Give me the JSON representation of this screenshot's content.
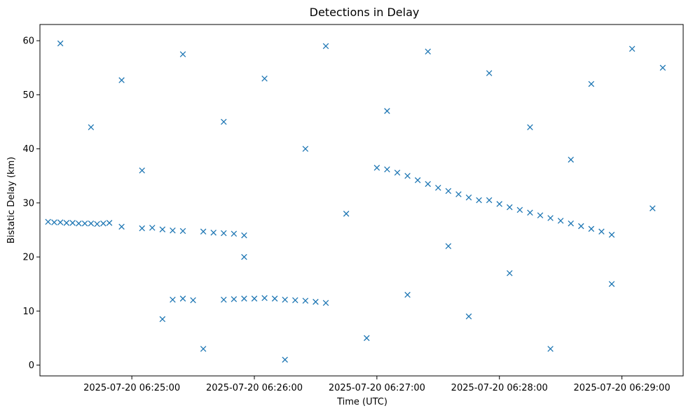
{
  "chart_data": {
    "type": "scatter",
    "title": "Detections in Delay",
    "xlabel": "Time (UTC)",
    "ylabel": "Bistatic Delay (km)",
    "marker": "x",
    "color": "#1f77b4",
    "grid": false,
    "x_axis": {
      "kind": "time",
      "range": [
        "2025-07-20 06:24:15",
        "2025-07-20 06:29:30"
      ],
      "ticks": [
        "2025-07-20 06:25:00",
        "2025-07-20 06:26:00",
        "2025-07-20 06:27:00",
        "2025-07-20 06:28:00",
        "2025-07-20 06:29:00"
      ]
    },
    "y_axis": {
      "range": [
        -2,
        63
      ],
      "ticks": [
        0,
        10,
        20,
        30,
        40,
        50,
        60
      ]
    },
    "series": [
      {
        "start": "2025-07-20 06:24:15",
        "points": [
          [
            "2025-07-20 06:24:19",
            26.5
          ],
          [
            "2025-07-20 06:24:22",
            26.4
          ],
          [
            "2025-07-20 06:24:25",
            26.4
          ],
          [
            "2025-07-20 06:24:28",
            26.3
          ],
          [
            "2025-07-20 06:24:31",
            26.3
          ],
          [
            "2025-07-20 06:24:34",
            26.2
          ],
          [
            "2025-07-20 06:24:37",
            26.2
          ],
          [
            "2025-07-20 06:24:40",
            26.2
          ],
          [
            "2025-07-20 06:24:43",
            26.1
          ],
          [
            "2025-07-20 06:24:46",
            26.2
          ],
          [
            "2025-07-20 06:24:49",
            26.3
          ],
          [
            "2025-07-20 06:24:55",
            25.6
          ],
          [
            "2025-07-20 06:25:05",
            25.3
          ],
          [
            "2025-07-20 06:25:10",
            25.4
          ],
          [
            "2025-07-20 06:25:15",
            25.1
          ],
          [
            "2025-07-20 06:25:20",
            24.9
          ],
          [
            "2025-07-20 06:25:25",
            24.8
          ],
          [
            "2025-07-20 06:25:35",
            24.7
          ],
          [
            "2025-07-20 06:25:40",
            24.5
          ],
          [
            "2025-07-20 06:25:45",
            24.4
          ],
          [
            "2025-07-20 06:25:50",
            24.3
          ],
          [
            "2025-07-20 06:25:55",
            24.0
          ],
          [
            "2025-07-20 06:25:20",
            12.1
          ],
          [
            "2025-07-20 06:25:25",
            12.3
          ],
          [
            "2025-07-20 06:25:30",
            12.0
          ],
          [
            "2025-07-20 06:25:45",
            12.1
          ],
          [
            "2025-07-20 06:25:50",
            12.2
          ],
          [
            "2025-07-20 06:25:55",
            12.3
          ],
          [
            "2025-07-20 06:26:00",
            12.3
          ],
          [
            "2025-07-20 06:26:05",
            12.4
          ],
          [
            "2025-07-20 06:26:10",
            12.3
          ],
          [
            "2025-07-20 06:26:15",
            12.1
          ],
          [
            "2025-07-20 06:26:20",
            12.0
          ],
          [
            "2025-07-20 06:26:25",
            11.9
          ],
          [
            "2025-07-20 06:26:30",
            11.7
          ],
          [
            "2025-07-20 06:26:35",
            11.5
          ],
          [
            "2025-07-20 06:27:00",
            36.5
          ],
          [
            "2025-07-20 06:27:05",
            36.2
          ],
          [
            "2025-07-20 06:27:10",
            35.6
          ],
          [
            "2025-07-20 06:27:15",
            35.0
          ],
          [
            "2025-07-20 06:27:20",
            34.2
          ],
          [
            "2025-07-20 06:27:25",
            33.5
          ],
          [
            "2025-07-20 06:27:30",
            32.8
          ],
          [
            "2025-07-20 06:27:35",
            32.2
          ],
          [
            "2025-07-20 06:27:40",
            31.6
          ],
          [
            "2025-07-20 06:27:45",
            31.0
          ],
          [
            "2025-07-20 06:27:50",
            30.5
          ],
          [
            "2025-07-20 06:27:55",
            30.5
          ],
          [
            "2025-07-20 06:28:00",
            29.8
          ],
          [
            "2025-07-20 06:28:05",
            29.2
          ],
          [
            "2025-07-20 06:28:10",
            28.7
          ],
          [
            "2025-07-20 06:28:15",
            28.2
          ],
          [
            "2025-07-20 06:28:20",
            27.7
          ],
          [
            "2025-07-20 06:28:25",
            27.2
          ],
          [
            "2025-07-20 06:28:30",
            26.7
          ],
          [
            "2025-07-20 06:28:35",
            26.2
          ],
          [
            "2025-07-20 06:28:40",
            25.7
          ],
          [
            "2025-07-20 06:28:45",
            25.2
          ],
          [
            "2025-07-20 06:28:50",
            24.7
          ],
          [
            "2025-07-20 06:28:55",
            24.1
          ],
          [
            "2025-07-20 06:24:25",
            59.5
          ],
          [
            "2025-07-20 06:24:40",
            44.0
          ],
          [
            "2025-07-20 06:24:55",
            52.7
          ],
          [
            "2025-07-20 06:25:05",
            36.0
          ],
          [
            "2025-07-20 06:25:15",
            8.5
          ],
          [
            "2025-07-20 06:25:25",
            57.5
          ],
          [
            "2025-07-20 06:25:35",
            3.0
          ],
          [
            "2025-07-20 06:25:45",
            45.0
          ],
          [
            "2025-07-20 06:25:55",
            20.0
          ],
          [
            "2025-07-20 06:26:05",
            53.0
          ],
          [
            "2025-07-20 06:26:15",
            1.0
          ],
          [
            "2025-07-20 06:26:25",
            40.0
          ],
          [
            "2025-07-20 06:26:35",
            59.0
          ],
          [
            "2025-07-20 06:26:45",
            28.0
          ],
          [
            "2025-07-20 06:26:55",
            5.0
          ],
          [
            "2025-07-20 06:27:05",
            47.0
          ],
          [
            "2025-07-20 06:27:15",
            13.0
          ],
          [
            "2025-07-20 06:27:25",
            58.0
          ],
          [
            "2025-07-20 06:27:35",
            22.0
          ],
          [
            "2025-07-20 06:27:45",
            9.0
          ],
          [
            "2025-07-20 06:27:55",
            54.0
          ],
          [
            "2025-07-20 06:28:05",
            17.0
          ],
          [
            "2025-07-20 06:28:15",
            44.0
          ],
          [
            "2025-07-20 06:28:25",
            3.0
          ],
          [
            "2025-07-20 06:28:35",
            38.0
          ],
          [
            "2025-07-20 06:28:45",
            52.0
          ],
          [
            "2025-07-20 06:28:55",
            15.0
          ],
          [
            "2025-07-20 06:29:05",
            58.5
          ],
          [
            "2025-07-20 06:29:15",
            29.0
          ],
          [
            "2025-07-20 06:29:20",
            55.0
          ]
        ]
      }
    ]
  }
}
